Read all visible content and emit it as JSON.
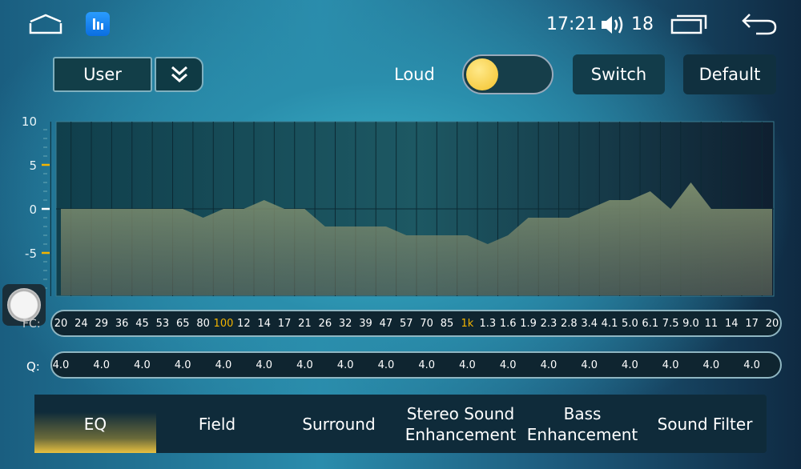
{
  "status": {
    "time": "17:21",
    "volume": "18"
  },
  "top": {
    "preset": "User",
    "loud_label": "Loud",
    "loud_on": false,
    "switch_label": "Switch",
    "default_label": "Default"
  },
  "chart_data": {
    "type": "area",
    "yticks": [
      "10",
      "5",
      "0",
      "-5"
    ],
    "ylim": [
      -10,
      10
    ],
    "values": [
      0,
      0,
      0,
      0,
      0,
      0,
      0,
      -1,
      0,
      0,
      1,
      0,
      0,
      -2,
      -2,
      -2,
      -2,
      -3,
      -3,
      -3,
      -3,
      -4,
      -3,
      -1,
      -1,
      -1,
      0,
      1,
      1,
      2,
      0,
      3,
      0,
      0,
      0,
      0
    ],
    "fc_label": "FC:",
    "frequencies": [
      "20",
      "24",
      "29",
      "36",
      "45",
      "53",
      "65",
      "80",
      "100",
      "12",
      "14",
      "17",
      "21",
      "26",
      "32",
      "39",
      "47",
      "57",
      "70",
      "85",
      "1k",
      "1.3",
      "1.6",
      "1.9",
      "2.3",
      "2.8",
      "3.4",
      "4.1",
      "5.0",
      "6.1",
      "7.5",
      "9.0",
      "11",
      "14",
      "17",
      "20"
    ],
    "highlighted": [
      "100",
      "1k"
    ],
    "q_label": "Q:",
    "q_values": [
      "4.0",
      "4.0",
      "4.0",
      "4.0",
      "4.0",
      "4.0",
      "4.0",
      "4.0",
      "4.0",
      "4.0",
      "4.0",
      "4.0",
      "4.0",
      "4.0",
      "4.0",
      "4.0",
      "4.0",
      "4.0"
    ]
  },
  "tabs": [
    {
      "label": "EQ",
      "active": true
    },
    {
      "label": "Field"
    },
    {
      "label": "Surround"
    },
    {
      "label": "Stereo Sound Enhancement"
    },
    {
      "label": "Bass Enhancement"
    },
    {
      "label": "Sound Filter"
    }
  ],
  "colors": {
    "accent": "#f2b400",
    "fill": "#7a8a6c"
  }
}
